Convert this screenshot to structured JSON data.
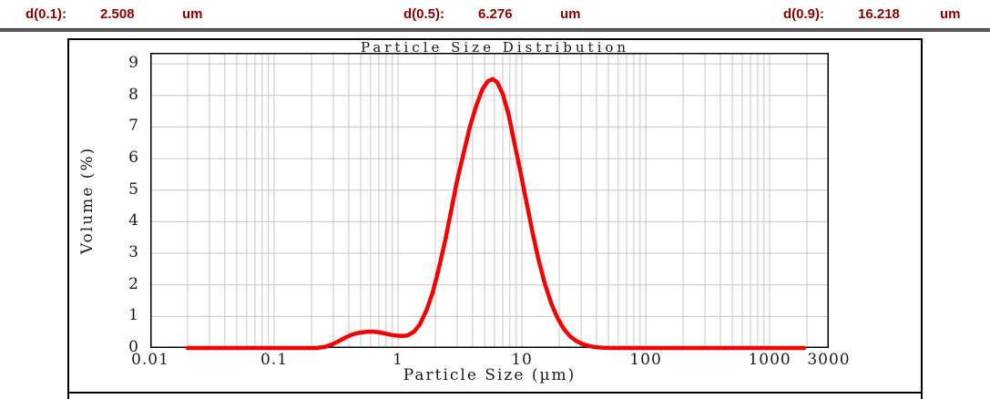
{
  "header": {
    "measurements": [
      {
        "label": "d(0.1):",
        "value": "2.508",
        "unit": "um"
      },
      {
        "label": "d(0.5):",
        "value": "6.276",
        "unit": "um"
      },
      {
        "label": "d(0.9):",
        "value": "16.218",
        "unit": "um"
      }
    ],
    "text_color": "#8b0000"
  },
  "chart_data": {
    "type": "line",
    "title": "Particle Size Distribution",
    "xlabel": "Particle Size (µm)",
    "ylabel": "Volume (%)",
    "x_scale": "log",
    "xlim": [
      0.01,
      3000
    ],
    "ylim": [
      0,
      9.35
    ],
    "x_ticks": [
      0.01,
      0.1,
      1,
      10,
      100,
      1000,
      3000
    ],
    "x_tick_labels": [
      "0.01",
      "0.1",
      "1",
      "10",
      "100",
      "1000",
      "3000"
    ],
    "y_ticks": [
      0,
      1,
      2,
      3,
      4,
      5,
      6,
      7,
      8,
      9
    ],
    "grid": true,
    "grid_color": "#c6c6c6",
    "curve_color": "#f40000",
    "series": [
      {
        "name": "volume-distribution",
        "points": [
          [
            0.02,
            0
          ],
          [
            0.22,
            0
          ],
          [
            0.26,
            0.04
          ],
          [
            0.3,
            0.13
          ],
          [
            0.34,
            0.24
          ],
          [
            0.38,
            0.34
          ],
          [
            0.43,
            0.43
          ],
          [
            0.48,
            0.48
          ],
          [
            0.55,
            0.51
          ],
          [
            0.62,
            0.52
          ],
          [
            0.7,
            0.5
          ],
          [
            0.8,
            0.45
          ],
          [
            0.9,
            0.41
          ],
          [
            1.0,
            0.39
          ],
          [
            1.1,
            0.38
          ],
          [
            1.2,
            0.4
          ],
          [
            1.35,
            0.52
          ],
          [
            1.5,
            0.75
          ],
          [
            1.7,
            1.2
          ],
          [
            1.9,
            1.75
          ],
          [
            2.1,
            2.4
          ],
          [
            2.4,
            3.4
          ],
          [
            2.7,
            4.4
          ],
          [
            3.0,
            5.3
          ],
          [
            3.4,
            6.2
          ],
          [
            3.8,
            7.0
          ],
          [
            4.3,
            7.7
          ],
          [
            4.8,
            8.2
          ],
          [
            5.3,
            8.45
          ],
          [
            5.8,
            8.52
          ],
          [
            6.3,
            8.42
          ],
          [
            7.0,
            8.05
          ],
          [
            7.8,
            7.4
          ],
          [
            8.7,
            6.5
          ],
          [
            9.7,
            5.6
          ],
          [
            10.9,
            4.6
          ],
          [
            12.2,
            3.65
          ],
          [
            13.7,
            2.75
          ],
          [
            15.4,
            2.0
          ],
          [
            17.3,
            1.4
          ],
          [
            19.4,
            0.95
          ],
          [
            21.8,
            0.6
          ],
          [
            24.5,
            0.37
          ],
          [
            27.5,
            0.22
          ],
          [
            31.0,
            0.12
          ],
          [
            35.0,
            0.06
          ],
          [
            40.0,
            0.02
          ],
          [
            46.0,
            0.005
          ],
          [
            52.0,
            0
          ],
          [
            1900,
            0
          ]
        ]
      }
    ]
  }
}
